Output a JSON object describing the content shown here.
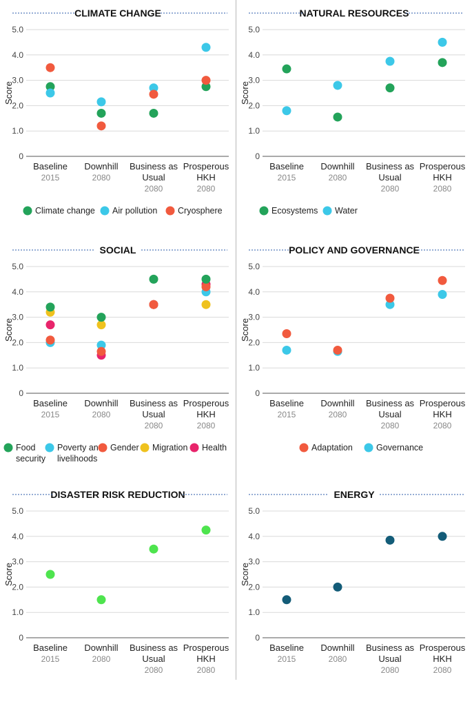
{
  "chart_data": [
    {
      "type": "scatter",
      "title": "CLIMATE CHANGE",
      "ylabel": "Score",
      "ylim": [
        0,
        5
      ],
      "yticks": [
        "0",
        "1.0",
        "2.0",
        "3.0",
        "4.0",
        "5.0"
      ],
      "categories": [
        {
          "label": [
            "Baseline"
          ],
          "year": "2015"
        },
        {
          "label": [
            "Downhill"
          ],
          "year": "2080"
        },
        {
          "label": [
            "Business as",
            "Usual"
          ],
          "year": "2080"
        },
        {
          "label": [
            "Prosperous",
            "HKH"
          ],
          "year": "2080"
        }
      ],
      "series": [
        {
          "name": "Climate change",
          "label_lines": [
            "Climate change"
          ],
          "color": "#23a35a",
          "values": [
            2.75,
            1.7,
            1.7,
            2.75
          ]
        },
        {
          "name": "Air pollution",
          "label_lines": [
            "Air pollution"
          ],
          "color": "#3cc8e8",
          "values": [
            2.5,
            2.15,
            2.7,
            4.3
          ]
        },
        {
          "name": "Cryosphere",
          "label_lines": [
            "Cryosphere"
          ],
          "color": "#f15a3e",
          "values": [
            3.5,
            1.2,
            2.45,
            3.0
          ]
        }
      ]
    },
    {
      "type": "scatter",
      "title": "NATURAL RESOURCES",
      "ylabel": "Score",
      "ylim": [
        0,
        5
      ],
      "yticks": [
        "0",
        "1.0",
        "2.0",
        "3.0",
        "4.0",
        "5.0"
      ],
      "categories": [
        {
          "label": [
            "Baseline"
          ],
          "year": "2015"
        },
        {
          "label": [
            "Downhill"
          ],
          "year": "2080"
        },
        {
          "label": [
            "Business as",
            "Usual"
          ],
          "year": "2080"
        },
        {
          "label": [
            "Prosperous",
            "HKH"
          ],
          "year": "2080"
        }
      ],
      "series": [
        {
          "name": "Ecosystems",
          "label_lines": [
            "Ecosystems"
          ],
          "color": "#23a35a",
          "values": [
            3.45,
            1.55,
            2.7,
            3.7
          ]
        },
        {
          "name": "Water",
          "label_lines": [
            "Water"
          ],
          "color": "#3cc8e8",
          "values": [
            1.8,
            2.8,
            3.75,
            4.5
          ]
        }
      ]
    },
    {
      "type": "scatter",
      "title": "SOCIAL",
      "ylabel": "Score",
      "ylim": [
        0,
        5
      ],
      "yticks": [
        "0",
        "1.0",
        "2.0",
        "3.0",
        "4.0",
        "5.0"
      ],
      "categories": [
        {
          "label": [
            "Baseline"
          ],
          "year": "2015"
        },
        {
          "label": [
            "Downhill"
          ],
          "year": "2080"
        },
        {
          "label": [
            "Business as",
            "Usual"
          ],
          "year": "2080"
        },
        {
          "label": [
            "Prosperous",
            "HKH"
          ],
          "year": "2080"
        }
      ],
      "series": [
        {
          "name": "Poverty and livelihoods",
          "label_lines": [
            "Poverty and",
            "livelihoods"
          ],
          "color": "#3cc8e8",
          "values": [
            2.0,
            1.9,
            3.5,
            4.0
          ]
        },
        {
          "name": "Migration",
          "label_lines": [
            "Migration"
          ],
          "color": "#efc21e",
          "values": [
            3.2,
            2.7,
            3.5,
            3.5
          ]
        },
        {
          "name": "Health",
          "label_lines": [
            "Health"
          ],
          "color": "#e8246b",
          "values": [
            2.7,
            1.5,
            3.5,
            4.3
          ]
        },
        {
          "name": "Gender",
          "label_lines": [
            "Gender"
          ],
          "color": "#f15a3e",
          "values": [
            2.1,
            1.65,
            3.5,
            4.2
          ]
        },
        {
          "name": "Food security",
          "label_lines": [
            "Food",
            "security"
          ],
          "color": "#23a35a",
          "values": [
            3.4,
            3.0,
            4.5,
            4.5
          ]
        }
      ]
    },
    {
      "type": "scatter",
      "title": "POLICY AND GOVERNANCE",
      "ylabel": "Score",
      "ylim": [
        0,
        5
      ],
      "yticks": [
        "0",
        "1.0",
        "2.0",
        "3.0",
        "4.0",
        "5.0"
      ],
      "categories": [
        {
          "label": [
            "Baseline"
          ],
          "year": "2015"
        },
        {
          "label": [
            "Downhill"
          ],
          "year": "2080"
        },
        {
          "label": [
            "Business as",
            "Usual"
          ],
          "year": "2080"
        },
        {
          "label": [
            "Prosperous",
            "HKH"
          ],
          "year": "2080"
        }
      ],
      "series": [
        {
          "name": "Governance",
          "label_lines": [
            "Governance"
          ],
          "color": "#3cc8e8",
          "values": [
            1.7,
            1.65,
            3.5,
            3.9
          ]
        },
        {
          "name": "Adaptation",
          "label_lines": [
            "Adaptation"
          ],
          "color": "#f15a3e",
          "values": [
            2.35,
            1.7,
            3.75,
            4.45
          ]
        }
      ]
    },
    {
      "type": "scatter",
      "title": "DISASTER RISK REDUCTION",
      "ylabel": "Score",
      "ylim": [
        0,
        5
      ],
      "yticks": [
        "0",
        "1.0",
        "2.0",
        "3.0",
        "4.0",
        "5.0"
      ],
      "categories": [
        {
          "label": [
            "Baseline"
          ],
          "year": "2015"
        },
        {
          "label": [
            "Downhill"
          ],
          "year": "2080"
        },
        {
          "label": [
            "Business as",
            "Usual"
          ],
          "year": "2080"
        },
        {
          "label": [
            "Prosperous",
            "HKH"
          ],
          "year": "2080"
        }
      ],
      "series": [
        {
          "name": "Disaster risk reduction",
          "color": "#4ee44e",
          "values": [
            2.5,
            1.5,
            3.5,
            4.25
          ]
        }
      ]
    },
    {
      "type": "scatter",
      "title": "ENERGY",
      "ylabel": "Score",
      "ylim": [
        0,
        5
      ],
      "yticks": [
        "0",
        "1.0",
        "2.0",
        "3.0",
        "4.0",
        "5.0"
      ],
      "categories": [
        {
          "label": [
            "Baseline"
          ],
          "year": "2015"
        },
        {
          "label": [
            "Downhill"
          ],
          "year": "2080"
        },
        {
          "label": [
            "Business as",
            "Usual"
          ],
          "year": "2080"
        },
        {
          "label": [
            "Prosperous",
            "HKH"
          ],
          "year": "2080"
        }
      ],
      "series": [
        {
          "name": "Energy",
          "color": "#135c78",
          "values": [
            1.5,
            2.0,
            3.85,
            4.0
          ]
        }
      ]
    }
  ],
  "legends": [
    {
      "items": [
        "Climate change",
        "Air pollution",
        "Cryosphere"
      ],
      "colors": [
        "#23a35a",
        "#3cc8e8",
        "#f15a3e"
      ]
    },
    {
      "items": [
        "Ecosystems",
        "Water"
      ],
      "colors": [
        "#23a35a",
        "#3cc8e8"
      ]
    },
    {
      "items": [
        "Food security",
        "Poverty and livelihoods",
        "Gender",
        "Migration",
        "Health"
      ],
      "colors": [
        "#23a35a",
        "#3cc8e8",
        "#f15a3e",
        "#efc21e",
        "#e8246b"
      ]
    },
    {
      "items": [
        "Adaptation",
        "Governance"
      ],
      "colors": [
        "#f15a3e",
        "#3cc8e8"
      ]
    },
    {
      "items": [],
      "colors": []
    },
    {
      "items": [],
      "colors": []
    }
  ]
}
